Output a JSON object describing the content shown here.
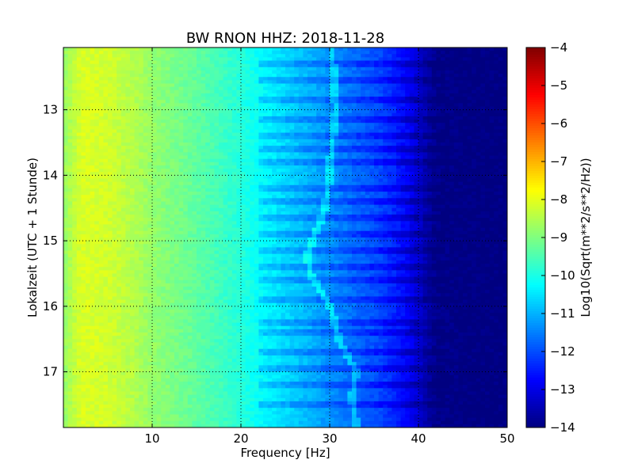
{
  "chart_data": {
    "type": "heatmap",
    "title": "BW RNON HHZ: 2018-11-28",
    "xlabel": "Frequency [Hz]",
    "ylabel": "Lokalzeit (UTC + 1 Stunde)",
    "xlim": [
      0,
      50
    ],
    "ylim": [
      17.85,
      12.05
    ],
    "xticks": [
      10,
      20,
      30,
      40,
      50
    ],
    "yticks": [
      13,
      14,
      15,
      16,
      17
    ],
    "grid": true,
    "colorbar": {
      "label": "Log10(Sqrt(m**2/s**2/Hz))",
      "range": [
        -14,
        -4
      ],
      "ticks": [
        -4,
        -5,
        -6,
        -7,
        -8,
        -9,
        -10,
        -11,
        -12,
        -13,
        -14
      ],
      "colormap": "jet"
    },
    "spectral_profile": {
      "frequency_hz": [
        0,
        2,
        5,
        8,
        10,
        15,
        20,
        22,
        25,
        28,
        30,
        33,
        36,
        39,
        40,
        41,
        42,
        45,
        50
      ],
      "level": [
        -8.8,
        -8.1,
        -8.2,
        -8.5,
        -8.8,
        -9.3,
        -9.9,
        -10.2,
        -10.6,
        -11.0,
        -11.3,
        -11.7,
        -12.1,
        -12.8,
        -13.2,
        -13.6,
        -13.9,
        -14.0,
        -14.0
      ]
    },
    "horizontal_bands_hours": [
      12.3,
      12.55,
      12.85,
      13.15,
      13.4,
      13.6,
      13.8,
      14.2,
      14.4,
      14.65,
      14.9,
      15.15,
      15.4,
      15.6,
      15.9,
      16.25,
      16.4,
      16.7,
      16.95,
      17.2,
      17.5
    ],
    "tonal_line_track": {
      "hours": [
        12.2,
        13.0,
        13.6,
        14.0,
        14.5,
        15.2,
        15.5,
        16.0,
        16.5,
        17.0,
        17.4,
        17.8
      ],
      "frequency_hz": [
        30.3,
        30.7,
        30.2,
        30.0,
        29.5,
        27.5,
        27.8,
        30.0,
        31.0,
        33.0,
        32.5,
        33.0
      ]
    }
  }
}
